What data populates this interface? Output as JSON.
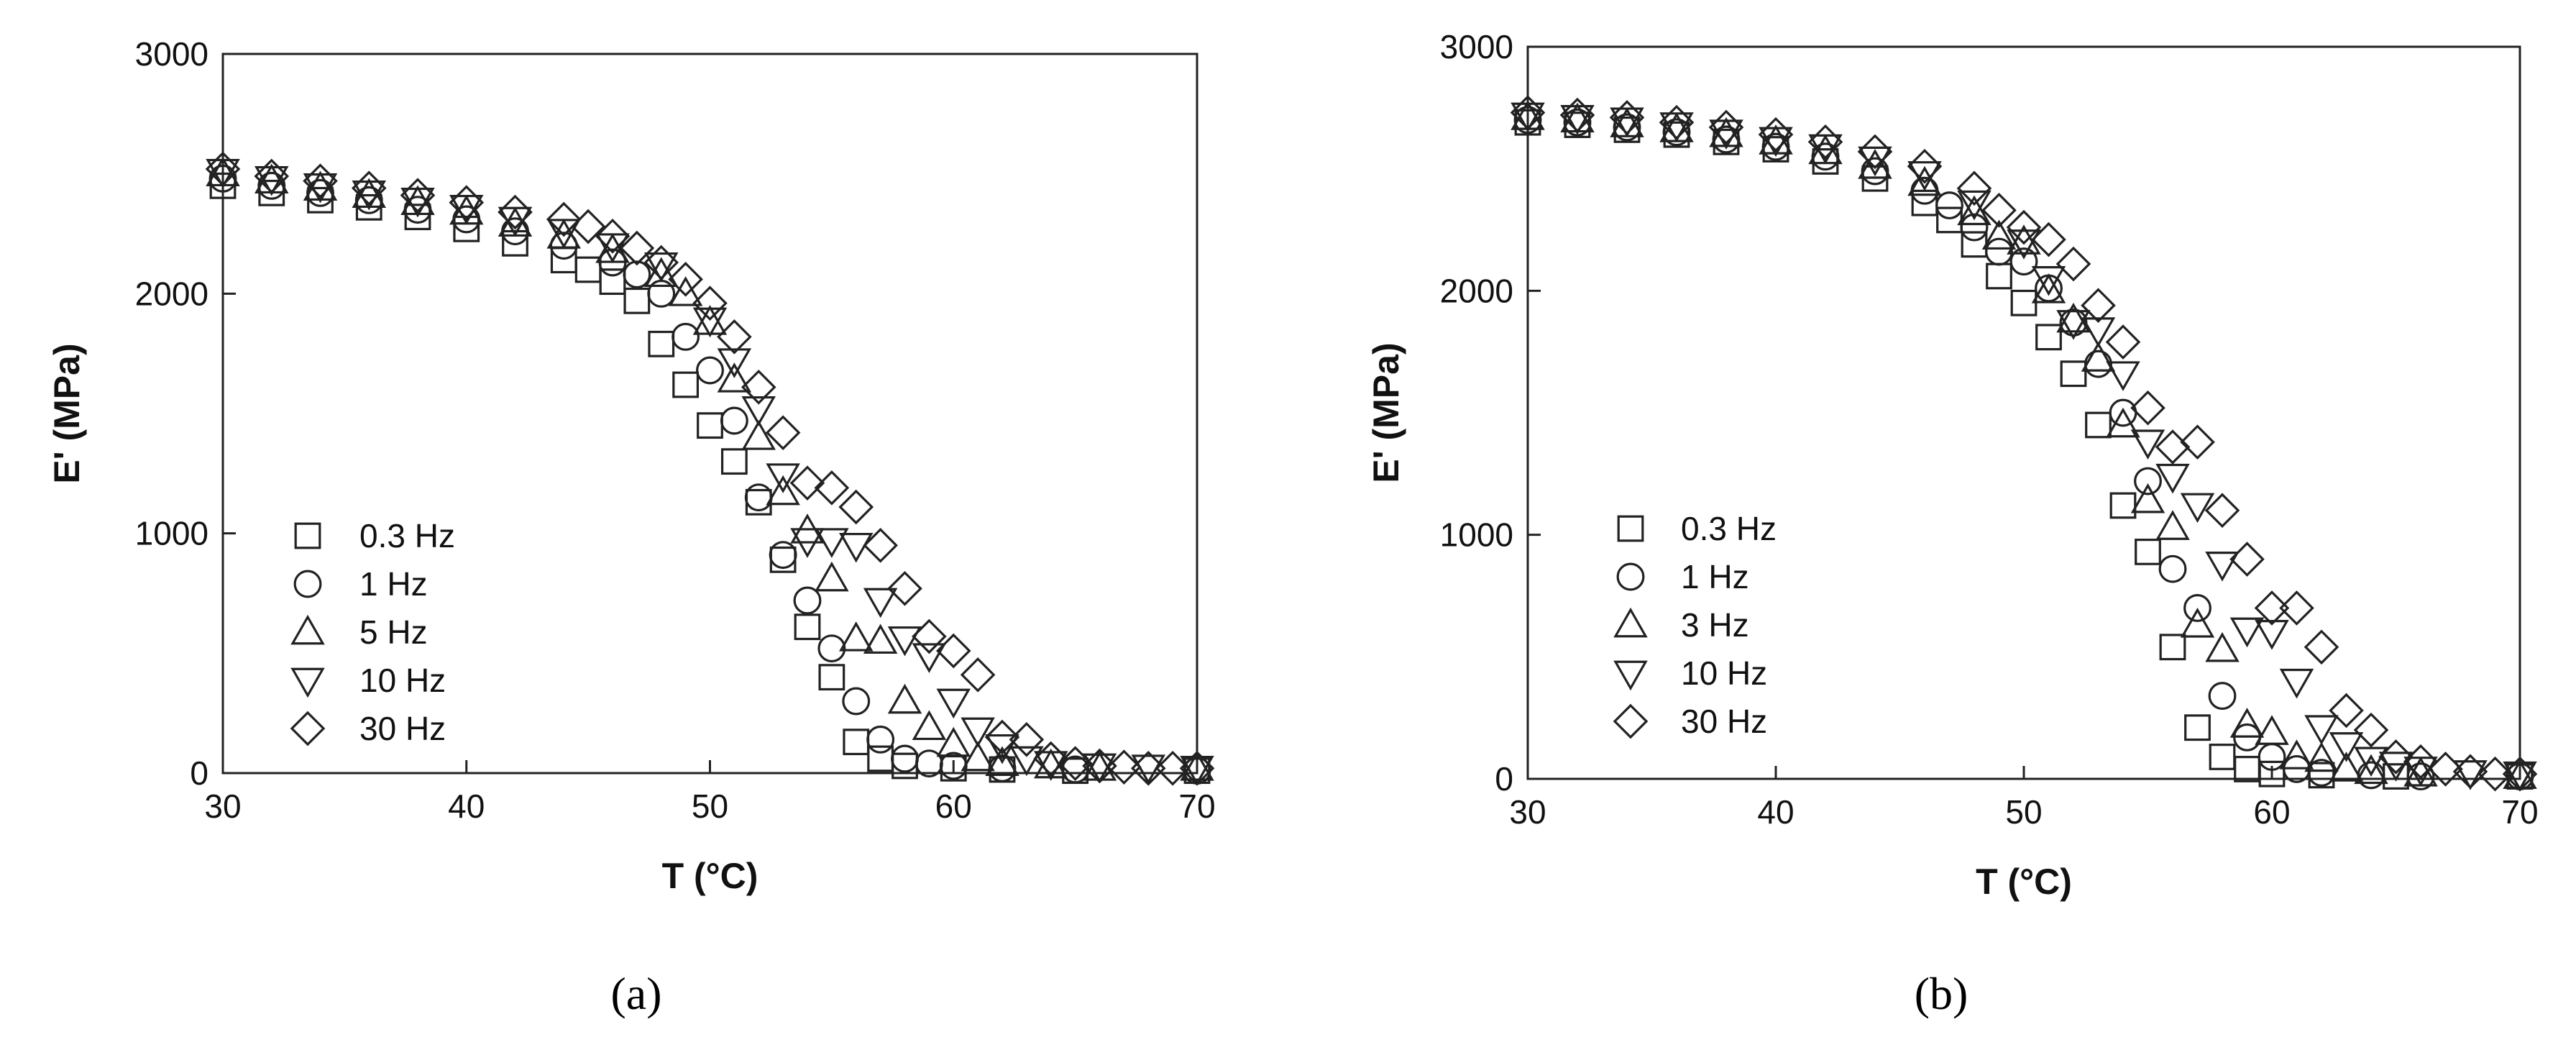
{
  "chart_data": [
    {
      "type": "scatter",
      "panel_label": "(a)",
      "xlabel": "T (°C)",
      "ylabel": "E' (MPa)",
      "xlim": [
        30,
        70
      ],
      "ylim": [
        0,
        3000
      ],
      "xticks": [
        30,
        40,
        50,
        60,
        70
      ],
      "yticks": [
        0,
        1000,
        2000,
        3000
      ],
      "grid": false,
      "legend_position": "lower-left",
      "series": [
        {
          "name": "0.3 Hz",
          "marker": "square",
          "x": [
            30,
            32,
            34,
            36,
            38,
            40,
            42,
            44,
            45,
            46,
            47,
            48,
            49,
            50,
            51,
            52,
            53,
            54,
            55,
            56,
            57,
            58,
            60,
            62,
            65,
            70
          ],
          "y": [
            2450,
            2420,
            2390,
            2360,
            2320,
            2270,
            2210,
            2140,
            2100,
            2050,
            1970,
            1790,
            1620,
            1450,
            1300,
            1130,
            890,
            610,
            400,
            130,
            60,
            30,
            20,
            15,
            10,
            10
          ]
        },
        {
          "name": "1 Hz",
          "marker": "circle",
          "x": [
            30,
            32,
            34,
            36,
            38,
            40,
            42,
            44,
            46,
            47,
            48,
            49,
            50,
            51,
            52,
            53,
            54,
            55,
            56,
            57,
            58,
            59,
            60,
            62,
            65,
            70
          ],
          "y": [
            2480,
            2450,
            2420,
            2390,
            2350,
            2310,
            2260,
            2200,
            2130,
            2080,
            2000,
            1820,
            1680,
            1470,
            1150,
            910,
            720,
            520,
            300,
            140,
            60,
            40,
            30,
            20,
            15,
            10
          ]
        },
        {
          "name": "5 Hz",
          "marker": "triangle-up",
          "x": [
            30,
            32,
            34,
            36,
            38,
            40,
            42,
            44,
            46,
            48,
            49,
            50,
            51,
            52,
            53,
            54,
            55,
            56,
            57,
            58,
            59,
            60,
            61,
            62,
            64,
            66,
            70
          ],
          "y": [
            2500,
            2470,
            2440,
            2410,
            2380,
            2340,
            2290,
            2240,
            2180,
            2080,
            2000,
            1880,
            1640,
            1400,
            1170,
            1010,
            810,
            560,
            550,
            300,
            190,
            120,
            60,
            40,
            30,
            20,
            20
          ]
        },
        {
          "name": "10 Hz",
          "marker": "triangle-down",
          "x": [
            30,
            32,
            34,
            36,
            38,
            40,
            42,
            44,
            46,
            48,
            50,
            51,
            52,
            53,
            54,
            55,
            56,
            57,
            58,
            59,
            60,
            61,
            62,
            63,
            64,
            66,
            68,
            70
          ],
          "y": [
            2510,
            2480,
            2450,
            2420,
            2390,
            2360,
            2310,
            2260,
            2200,
            2120,
            1890,
            1720,
            1520,
            1240,
            970,
            970,
            950,
            720,
            560,
            490,
            300,
            180,
            110,
            60,
            40,
            30,
            25,
            20
          ]
        },
        {
          "name": "30 Hz",
          "marker": "diamond",
          "x": [
            30,
            32,
            34,
            36,
            38,
            40,
            42,
            44,
            45,
            46,
            47,
            48,
            49,
            50,
            51,
            52,
            53,
            54,
            55,
            56,
            57,
            58,
            59,
            60,
            61,
            62,
            63,
            64,
            65,
            66,
            67,
            68,
            69,
            70
          ],
          "y": [
            2520,
            2490,
            2470,
            2440,
            2410,
            2380,
            2340,
            2310,
            2280,
            2240,
            2190,
            2130,
            2060,
            1960,
            1820,
            1610,
            1420,
            1210,
            1190,
            1110,
            950,
            770,
            570,
            510,
            410,
            150,
            140,
            60,
            40,
            30,
            25,
            20,
            20,
            20
          ]
        }
      ]
    },
    {
      "type": "scatter",
      "panel_label": "(b)",
      "xlabel": "T (°C)",
      "ylabel": "E' (MPa)",
      "xlim": [
        30,
        70
      ],
      "ylim": [
        0,
        3000
      ],
      "xticks": [
        30,
        40,
        50,
        60,
        70
      ],
      "yticks": [
        0,
        1000,
        2000,
        3000
      ],
      "grid": false,
      "legend_position": "lower-left",
      "series": [
        {
          "name": "0.3 Hz",
          "marker": "square",
          "x": [
            30,
            32,
            34,
            36,
            38,
            40,
            42,
            44,
            46,
            47,
            48,
            49,
            50,
            51,
            52,
            53,
            54,
            55,
            56,
            57,
            58,
            59,
            60,
            62,
            65,
            70
          ],
          "y": [
            2690,
            2680,
            2660,
            2640,
            2610,
            2580,
            2530,
            2460,
            2360,
            2290,
            2190,
            2060,
            1950,
            1810,
            1660,
            1450,
            1120,
            930,
            540,
            210,
            90,
            40,
            20,
            15,
            10,
            10
          ]
        },
        {
          "name": "1 Hz",
          "marker": "circle",
          "x": [
            30,
            32,
            34,
            36,
            38,
            40,
            42,
            44,
            46,
            47,
            48,
            49,
            50,
            51,
            52,
            53,
            54,
            55,
            56,
            57,
            58,
            59,
            60,
            61,
            62,
            64,
            66,
            70
          ],
          "y": [
            2700,
            2690,
            2670,
            2650,
            2620,
            2590,
            2550,
            2490,
            2410,
            2350,
            2260,
            2160,
            2120,
            2010,
            1870,
            1700,
            1500,
            1220,
            860,
            700,
            340,
            170,
            90,
            40,
            25,
            15,
            10,
            10
          ]
        },
        {
          "name": "3 Hz",
          "marker": "triangle-up",
          "x": [
            30,
            32,
            34,
            36,
            38,
            40,
            42,
            44,
            46,
            48,
            49,
            50,
            51,
            52,
            53,
            54,
            55,
            56,
            57,
            58,
            59,
            60,
            61,
            62,
            63,
            64,
            66,
            70
          ],
          "y": [
            2710,
            2700,
            2680,
            2660,
            2640,
            2610,
            2570,
            2510,
            2440,
            2320,
            2220,
            2200,
            2000,
            1880,
            1720,
            1450,
            1140,
            1030,
            630,
            530,
            220,
            190,
            90,
            80,
            40,
            30,
            20,
            10
          ]
        },
        {
          "name": "10 Hz",
          "marker": "triangle-down",
          "x": [
            30,
            32,
            34,
            36,
            38,
            40,
            42,
            44,
            46,
            48,
            50,
            51,
            52,
            53,
            54,
            55,
            56,
            57,
            58,
            59,
            60,
            61,
            62,
            63,
            64,
            65,
            66,
            68,
            70
          ],
          "y": [
            2720,
            2710,
            2700,
            2680,
            2650,
            2620,
            2590,
            2540,
            2480,
            2360,
            2200,
            2050,
            1870,
            1840,
            1660,
            1380,
            1240,
            1120,
            880,
            610,
            600,
            400,
            210,
            140,
            80,
            60,
            40,
            25,
            20
          ]
        },
        {
          "name": "30 Hz",
          "marker": "diamond",
          "x": [
            30,
            32,
            34,
            36,
            38,
            40,
            42,
            44,
            46,
            48,
            49,
            50,
            51,
            52,
            53,
            54,
            55,
            56,
            57,
            58,
            59,
            60,
            61,
            62,
            63,
            64,
            65,
            66,
            67,
            68,
            69,
            70
          ],
          "y": [
            2730,
            2720,
            2710,
            2690,
            2670,
            2640,
            2610,
            2570,
            2510,
            2420,
            2330,
            2260,
            2210,
            2110,
            1940,
            1790,
            1520,
            1360,
            1380,
            1100,
            900,
            700,
            700,
            540,
            280,
            200,
            90,
            70,
            40,
            30,
            20,
            20
          ]
        }
      ]
    }
  ]
}
